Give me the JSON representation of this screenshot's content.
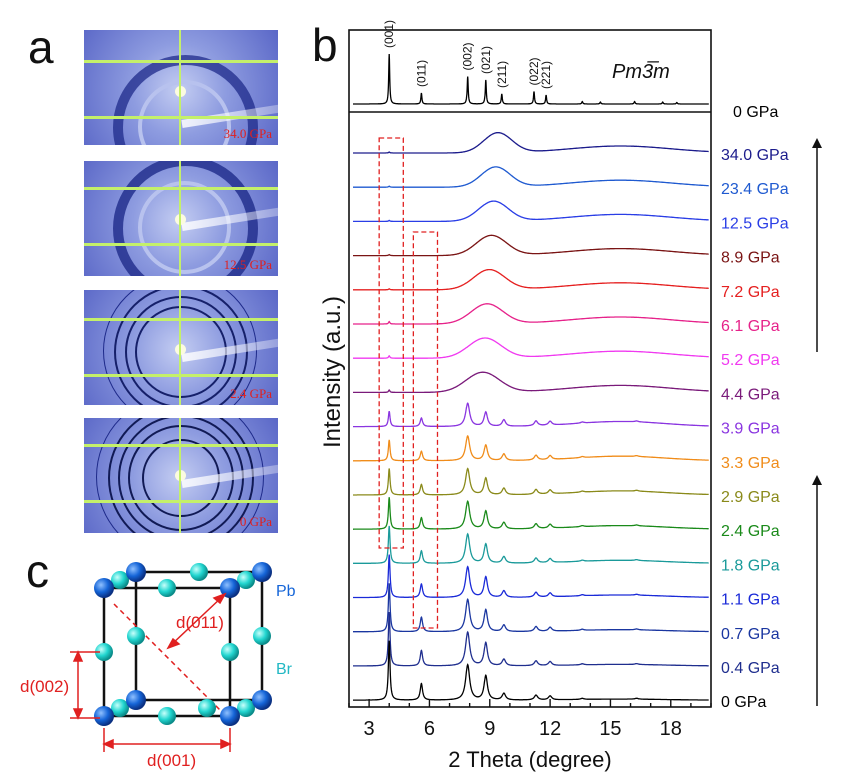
{
  "panels": {
    "a": "a",
    "b": "b",
    "c": "c"
  },
  "diffraction_images": [
    {
      "label": "34.0 GPa"
    },
    {
      "label": "12.5 GPa"
    },
    {
      "label": "2.4 GPa"
    },
    {
      "label": "0 GPa"
    }
  ],
  "crystal": {
    "atom_pb": "Pb",
    "atom_br": "Br",
    "d011": "d(011)",
    "d002": "d(002)",
    "d001": "d(001)",
    "colors": {
      "pb": "#1565d8",
      "br": "#22d6d0",
      "frame": "#111111",
      "annotation": "#e02020"
    }
  },
  "chart_data": {
    "type": "line",
    "xlabel": "2 Theta (degree)",
    "ylabel": "Intensity (a.u.)",
    "xlim": [
      2,
      20
    ],
    "xticks": [
      3,
      6,
      9,
      12,
      15,
      18
    ],
    "space_group": "Pm3̅m",
    "reference": {
      "name": "0 GPa",
      "color": "#000000",
      "peaks": [
        {
          "x": 4.0,
          "h": 1.0,
          "hkl": "(001)"
        },
        {
          "x": 5.6,
          "h": 0.22,
          "hkl": "(011)"
        },
        {
          "x": 7.9,
          "h": 0.55,
          "hkl": "(002)"
        },
        {
          "x": 8.8,
          "h": 0.48,
          "hkl": "(021)"
        },
        {
          "x": 9.6,
          "h": 0.2,
          "hkl": "(211)"
        },
        {
          "x": 11.2,
          "h": 0.25,
          "hkl": "(022)"
        },
        {
          "x": 11.8,
          "h": 0.18,
          "hkl": "(221)"
        },
        {
          "x": 13.6,
          "h": 0.05,
          "hkl": ""
        },
        {
          "x": 14.5,
          "h": 0.04,
          "hkl": ""
        },
        {
          "x": 16.2,
          "h": 0.05,
          "hkl": ""
        },
        {
          "x": 17.6,
          "h": 0.04,
          "hkl": ""
        },
        {
          "x": 18.3,
          "h": 0.03,
          "hkl": ""
        }
      ]
    },
    "series": [
      {
        "name": "34.0 GPa",
        "color": "#1c1c8c",
        "type": "amorphous"
      },
      {
        "name": "23.4 GPa",
        "color": "#1f5ad0",
        "type": "amorphous"
      },
      {
        "name": "12.5 GPa",
        "color": "#2a3ee6",
        "type": "amorphous"
      },
      {
        "name": "8.9 GPa",
        "color": "#7a1414",
        "type": "amorphous"
      },
      {
        "name": "7.2 GPa",
        "color": "#e52020",
        "type": "amorphous"
      },
      {
        "name": "6.1 GPa",
        "color": "#e6228a",
        "type": "amorphous"
      },
      {
        "name": "5.2 GPa",
        "color": "#f03af0",
        "type": "amorphous"
      },
      {
        "name": "4.4 GPa",
        "color": "#7a1a7a",
        "type": "amorphous"
      },
      {
        "name": "3.9 GPa",
        "color": "#8a35e0",
        "type": "crystal"
      },
      {
        "name": "3.3 GPa",
        "color": "#f08c1a",
        "type": "crystal"
      },
      {
        "name": "2.9 GPa",
        "color": "#8a8a1a",
        "type": "crystal"
      },
      {
        "name": "2.4 GPa",
        "color": "#1a8a1a",
        "type": "crystal"
      },
      {
        "name": "1.8 GPa",
        "color": "#1a9a9a",
        "type": "crystal"
      },
      {
        "name": "1.1 GPa",
        "color": "#1a2ad8",
        "type": "crystal"
      },
      {
        "name": "0.7 GPa",
        "color": "#1a36a0",
        "type": "crystal"
      },
      {
        "name": "0.4 GPa",
        "color": "#1f2e8e",
        "type": "crystal"
      },
      {
        "name": "0 GPa",
        "color": "#000000",
        "type": "crystal"
      }
    ],
    "highlight_boxes": [
      {
        "x0": 3.5,
        "x1": 4.7,
        "color": "#e02020"
      },
      {
        "x0": 5.2,
        "x1": 6.4,
        "color": "#e02020"
      }
    ]
  }
}
